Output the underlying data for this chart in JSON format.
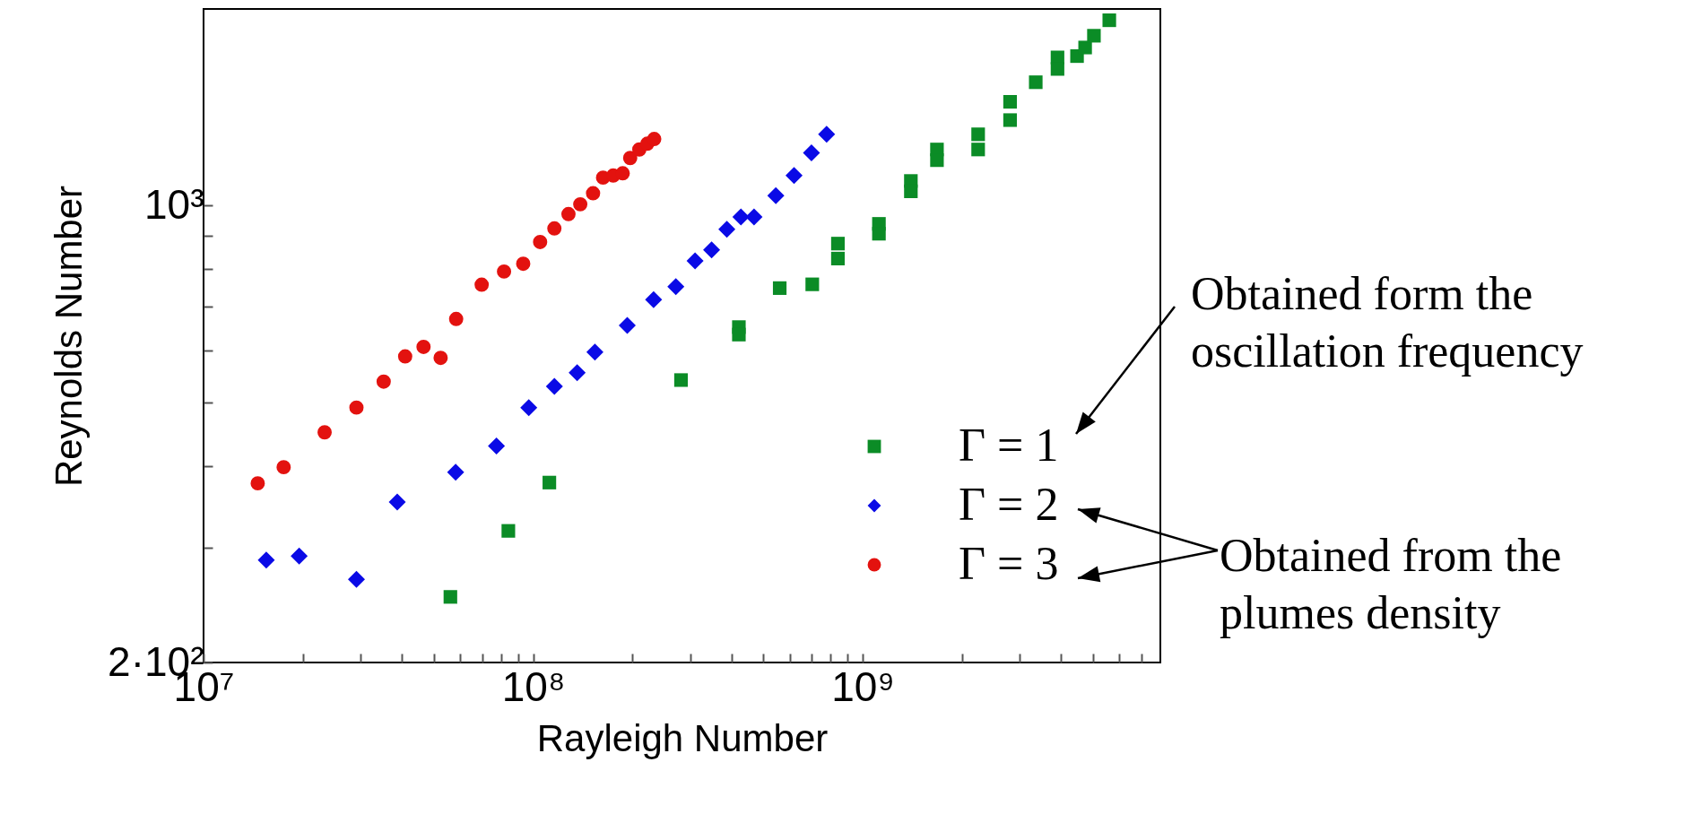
{
  "chart_data": {
    "type": "scatter",
    "xlabel": "Rayleigh Number",
    "ylabel": "Reynolds Number",
    "log": "xy",
    "grid": false,
    "legend": "bottom right",
    "xlim": [
      10000000,
      8000000000
    ],
    "ylim": [
      200,
      2000
    ],
    "xticks": [
      {
        "value": 10000000,
        "label": "10⁷"
      },
      {
        "value": 20000000,
        "label": null
      },
      {
        "value": 30000000,
        "label": null
      },
      {
        "value": 40000000,
        "label": null
      },
      {
        "value": 50000000,
        "label": null
      },
      {
        "value": 60000000,
        "label": null
      },
      {
        "value": 70000000,
        "label": null
      },
      {
        "value": 80000000,
        "label": null
      },
      {
        "value": 90000000,
        "label": null
      },
      {
        "value": 100000000,
        "label": "10⁸"
      },
      {
        "value": 200000000,
        "label": null
      },
      {
        "value": 300000000,
        "label": null
      },
      {
        "value": 400000000,
        "label": null
      },
      {
        "value": 500000000,
        "label": null
      },
      {
        "value": 600000000,
        "label": null
      },
      {
        "value": 700000000,
        "label": null
      },
      {
        "value": 800000000,
        "label": null
      },
      {
        "value": 900000000,
        "label": null
      },
      {
        "value": 1000000000,
        "label": "10⁹"
      },
      {
        "value": 2000000000,
        "label": null
      },
      {
        "value": 3000000000,
        "label": null
      },
      {
        "value": 4000000000,
        "label": null
      },
      {
        "value": 5000000000,
        "label": null
      },
      {
        "value": 6000000000,
        "label": null
      },
      {
        "value": 7000000000,
        "label": null
      }
    ],
    "yticks": [
      {
        "value": 200,
        "label": "2·10²"
      },
      {
        "value": 300,
        "label": null
      },
      {
        "value": 400,
        "label": null
      },
      {
        "value": 500,
        "label": null
      },
      {
        "value": 600,
        "label": null
      },
      {
        "value": 700,
        "label": null
      },
      {
        "value": 800,
        "label": null
      },
      {
        "value": 900,
        "label": null
      },
      {
        "value": 1000,
        "label": "10³"
      }
    ],
    "series": [
      {
        "name": "Γ = 1",
        "color": "#0b8c26",
        "marker": "square",
        "x": [
          56100000,
          84100000,
          112000000,
          281000000,
          421000000,
          421000000,
          560000000,
          703000000,
          841000000,
          841000000,
          1120000000,
          1120000000,
          1400000000,
          1400000000,
          1680000000,
          1680000000,
          2240000000,
          2240000000,
          2800000000,
          2800000000,
          3350000000,
          3900000000,
          3900000000,
          4470000000,
          4730000000,
          5030000000,
          5600000000
        ],
        "values": [
          252,
          318,
          377,
          541,
          652,
          635,
          748,
          758,
          875,
          830,
          938,
          906,
          1091,
          1052,
          1219,
          1174,
          1286,
          1219,
          1442,
          1352,
          1545,
          1686,
          1619,
          1694,
          1746,
          1820,
          1922
        ]
      },
      {
        "name": "Γ = 2",
        "color": "#0a0ae6",
        "marker": "diamond",
        "x": [
          15500000,
          19500000,
          29100000,
          38700000,
          58200000,
          77400000,
          97000000,
          116000000,
          136000000,
          154000000,
          193000000,
          232000000,
          271000000,
          310000000,
          348000000,
          387000000,
          427000000,
          468000000,
          545000000,
          619000000,
          699000000,
          777000000
        ],
        "values": [
          287,
          291,
          268,
          352,
          391,
          429,
          491,
          529,
          555,
          597,
          656,
          718,
          752,
          823,
          856,
          920,
          961,
          961,
          1036,
          1112,
          1205,
          1286
        ]
      },
      {
        "name": "Γ = 3",
        "color": "#e3120f",
        "marker": "circle",
        "x": [
          14600000,
          17500000,
          23300000,
          29100000,
          35200000,
          40900000,
          46500000,
          52400000,
          58400000,
          69800000,
          81600000,
          93300000,
          105000000,
          116000000,
          128000000,
          139000000,
          152000000,
          163000000,
          175000000,
          187000000,
          197000000,
          210000000,
          222000000,
          233000000
        ],
        "values": [
          376,
          398,
          450,
          491,
          538,
          588,
          608,
          585,
          671,
          757,
          793,
          815,
          880,
          923,
          971,
          1005,
          1045,
          1104,
          1112,
          1121,
          1183,
          1219,
          1244,
          1265
        ]
      }
    ],
    "annotations": [
      "Obtained form the oscillation frequency",
      "Obtained from the plumes density"
    ]
  }
}
